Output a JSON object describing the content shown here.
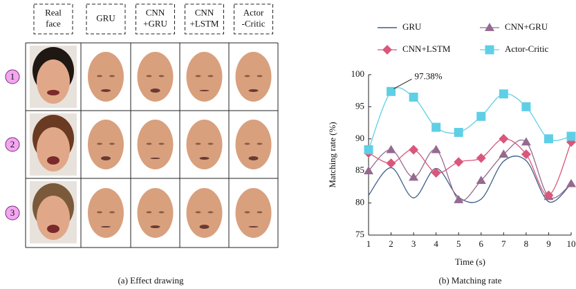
{
  "left_panel": {
    "headers": [
      [
        "Real",
        "face"
      ],
      [
        "GRU"
      ],
      [
        "CNN",
        "+GRU"
      ],
      [
        "CNN",
        "+LSTM"
      ],
      [
        "Actor",
        "-Critic"
      ]
    ],
    "row_labels": [
      "1",
      "2",
      "3"
    ],
    "caption": "(a) Effect drawing"
  },
  "chart_data": {
    "type": "line",
    "x": [
      1,
      2,
      3,
      4,
      5,
      6,
      7,
      8,
      9,
      10
    ],
    "xlim": [
      1,
      10
    ],
    "xticks": [
      1,
      2,
      3,
      4,
      5,
      6,
      7,
      8,
      9,
      10
    ],
    "ylim": [
      75,
      100
    ],
    "yticks": [
      75,
      80,
      85,
      90,
      95,
      100
    ],
    "xlabel": "Time (s)",
    "ylabel": "Matching rate (%)",
    "caption": "(b) Matching rate",
    "series": [
      {
        "name": "GRU",
        "color": "#3b5f86",
        "marker": "none",
        "values": [
          81.2,
          85.5,
          80.8,
          85.4,
          80.9,
          80.6,
          86.5,
          86.6,
          80.2,
          83.0
        ]
      },
      {
        "name": "CNN+GRU",
        "color": "#946a90",
        "marker": "triangle",
        "values": [
          85.0,
          88.3,
          84.0,
          88.3,
          80.5,
          83.5,
          87.6,
          89.5,
          81.0,
          83.0
        ]
      },
      {
        "name": "CNN+LSTM",
        "color": "#d9577a",
        "marker": "diamond",
        "values": [
          87.8,
          86.2,
          88.3,
          84.7,
          86.4,
          87.0,
          90.0,
          87.6,
          81.2,
          89.5
        ]
      },
      {
        "name": "Actor-Critic",
        "color": "#5fcfe6",
        "marker": "square",
        "values": [
          88.3,
          97.38,
          96.5,
          91.8,
          91.0,
          93.5,
          97.0,
          95.0,
          90.0,
          90.4
        ],
        "value_labels": [
          null,
          "97.38%",
          null,
          null,
          null,
          null,
          null,
          null,
          null,
          null
        ]
      }
    ]
  }
}
